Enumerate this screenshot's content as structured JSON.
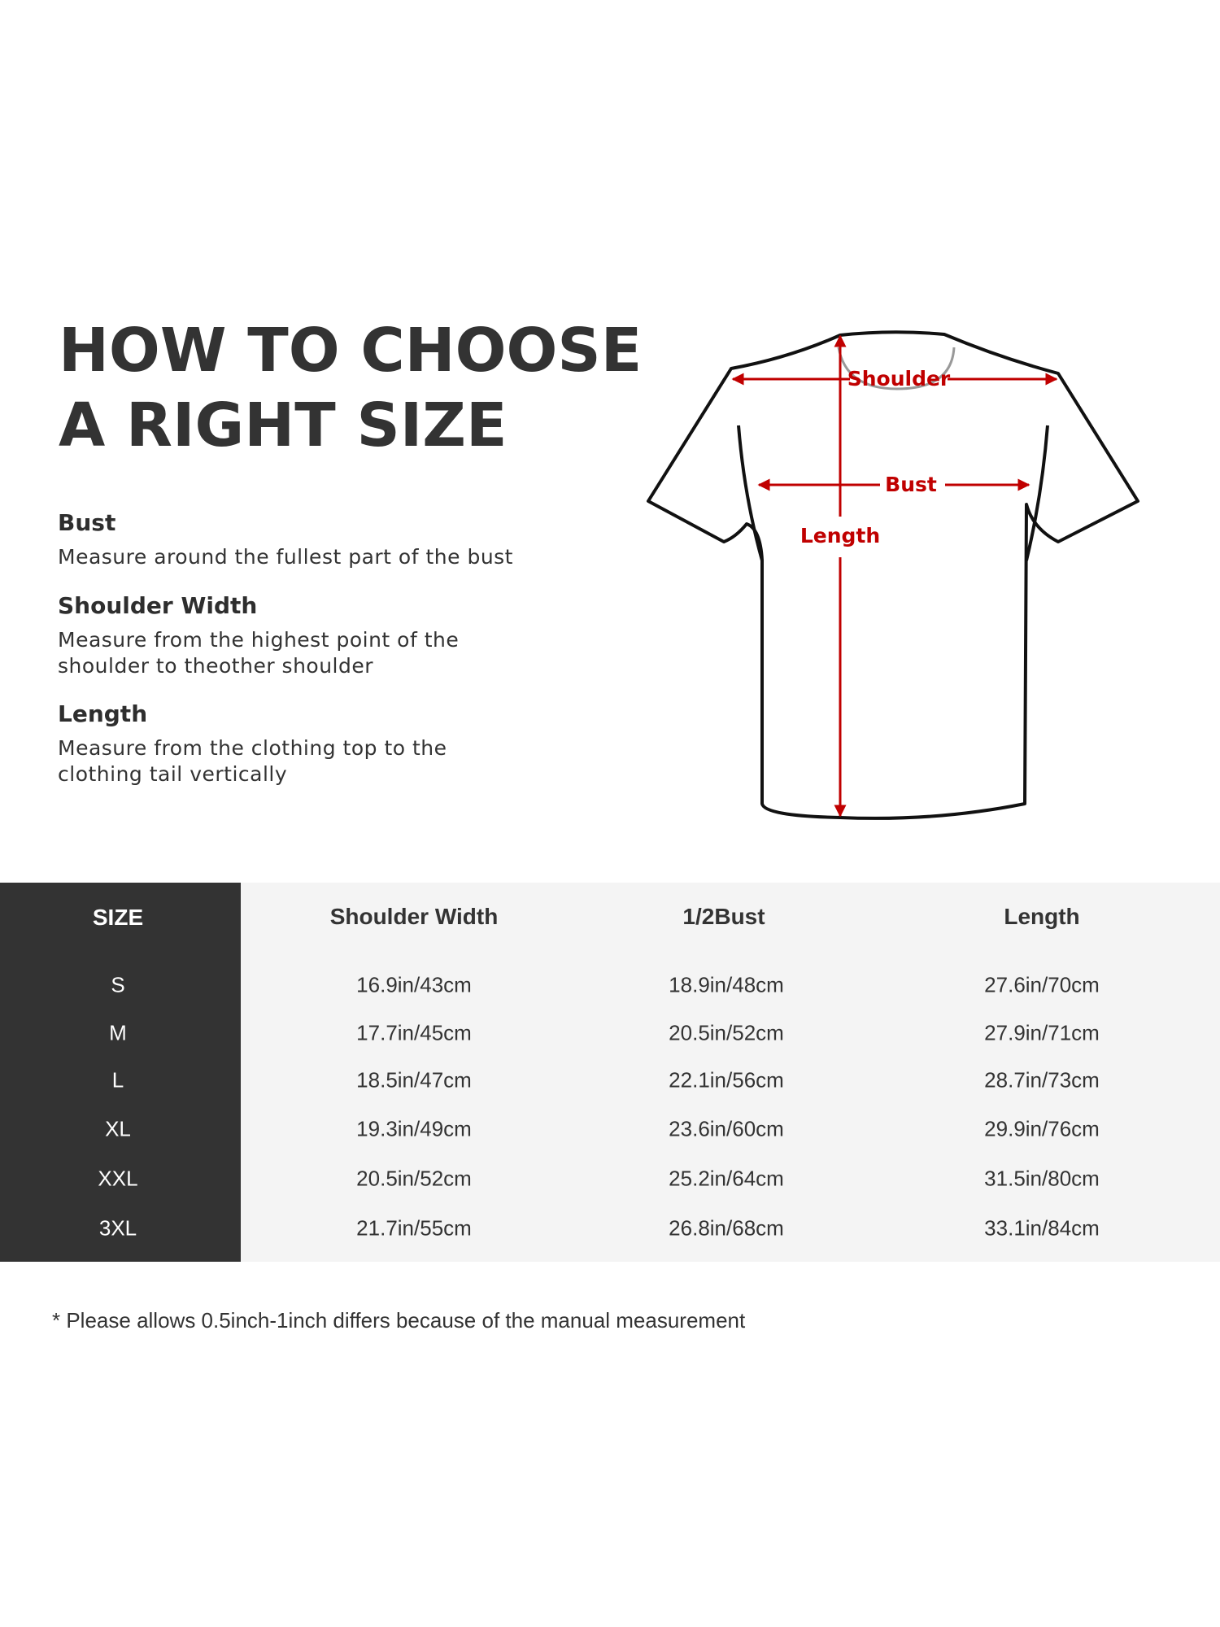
{
  "heading": {
    "line1": "HOW TO CHOOSE",
    "line2": "A RIGHT SIZE"
  },
  "guides": [
    {
      "title": "Bust",
      "desc": [
        "Measure around the fullest part of the bust"
      ]
    },
    {
      "title": "Shoulder Width",
      "desc": [
        "Measure from the highest point of the",
        "shoulder to theother shoulder"
      ]
    },
    {
      "title": "Length",
      "desc": [
        "Measure from the clothing top to the",
        "clothing tail vertically"
      ]
    }
  ],
  "diagram": {
    "shoulder_label": "Shoulder",
    "bust_label": "Bust",
    "length_label": "Length",
    "arrow_color": "#c00000"
  },
  "table": {
    "headers": [
      "SIZE",
      "Shoulder Width",
      "1/2Bust",
      "Length"
    ],
    "rows": [
      [
        "S",
        "16.9in/43cm",
        "18.9in/48cm",
        "27.6in/70cm"
      ],
      [
        "M",
        "17.7in/45cm",
        "20.5in/52cm",
        "27.9in/71cm"
      ],
      [
        "L",
        "18.5in/47cm",
        "22.1in/56cm",
        "28.7in/73cm"
      ],
      [
        "XL",
        "19.3in/49cm",
        "23.6in/60cm",
        "29.9in/76cm"
      ],
      [
        "XXL",
        "20.5in/52cm",
        "25.2in/64cm",
        "31.5in/80cm"
      ],
      [
        "3XL",
        "21.7in/55cm",
        "26.8in/68cm",
        "33.1in/84cm"
      ]
    ]
  },
  "footnote": "* Please allows 0.5inch-1inch differs because of the  manual measurement"
}
